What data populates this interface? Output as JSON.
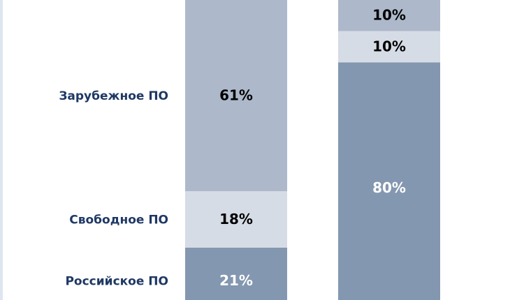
{
  "chart_data": {
    "type": "stacked_bar",
    "categories": [
      null,
      null
    ],
    "ylim": [
      0,
      100
    ],
    "series": [
      {
        "name": "Российское ПО",
        "color": "#8497b0",
        "values": [
          21,
          80
        ],
        "value_labels": [
          "21%",
          "80%"
        ]
      },
      {
        "name": "Свободное ПО",
        "color": "#d6dce5",
        "values": [
          18,
          10
        ],
        "value_labels": [
          "18%",
          "10%"
        ]
      },
      {
        "name": "Зарубежное ПО",
        "color": "#adb9ca",
        "values": [
          61,
          10
        ],
        "value_labels": [
          "61%",
          "10%"
        ]
      }
    ]
  }
}
